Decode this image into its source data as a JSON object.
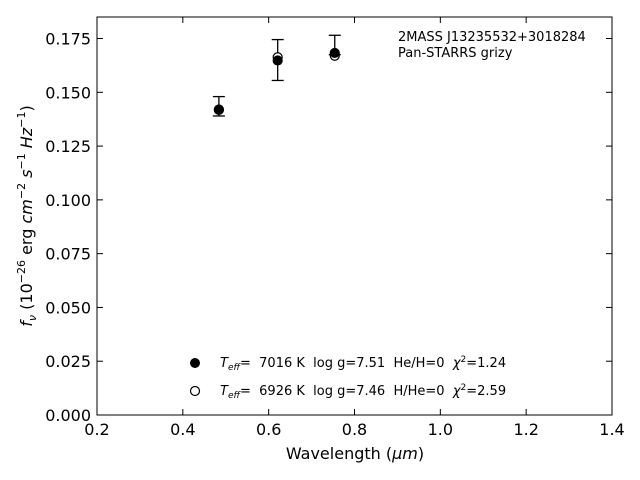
{
  "chart_data": {
    "type": "scatter",
    "title_lines": [
      "2MASS J13235532+3018284",
      "Pan-STARRS grizy"
    ],
    "xlabel_main": "Wavelength (",
    "xlabel_unit": "μm",
    "xlabel_end": ")",
    "ylabel_prefix": "f",
    "ylabel_sub": "ν",
    "ylabel_body": " (10",
    "ylabel_exp": "−26",
    "ylabel_units": " erg ",
    "ylabel_unit_cm": "cm",
    "ylabel_exp2": "−2",
    "ylabel_unit_s": " s",
    "ylabel_exp3": "−1",
    "ylabel_unit_hz": " Hz",
    "ylabel_exp4": "−1",
    "ylabel_close": ")",
    "xlim": [
      0.2,
      1.4
    ],
    "ylim": [
      0.0,
      0.185
    ],
    "xticks": [
      "0.2",
      "0.4",
      "0.6",
      "0.8",
      "1.0",
      "1.2",
      "1.4"
    ],
    "xtick_values": [
      0.2,
      0.4,
      0.6,
      0.8,
      1.0,
      1.2,
      1.4
    ],
    "yticks": [
      "0.000",
      "0.025",
      "0.050",
      "0.075",
      "0.100",
      "0.125",
      "0.150",
      "0.175"
    ],
    "ytick_values": [
      0.0,
      0.025,
      0.05,
      0.075,
      0.1,
      0.125,
      0.15,
      0.175
    ],
    "observed": {
      "x": [
        0.484,
        0.621,
        0.754
      ],
      "y": [
        0.1435,
        0.165,
        0.172
      ],
      "yerr": [
        0.0045,
        0.0095,
        0.0045
      ]
    },
    "series": [
      {
        "name": "Teff= 7016 K log g=7.51 He/H=0 χ2=1.24",
        "marker": "filled",
        "x": [
          0.484,
          0.621,
          0.754
        ],
        "y": [
          0.1418,
          0.1648,
          0.1683
        ]
      },
      {
        "name": "Teff= 6926 K log g=7.46 H/He=0 χ2=2.59",
        "marker": "open",
        "x": [
          0.484,
          0.621,
          0.754
        ],
        "y": [
          0.142,
          0.1663,
          0.167
        ]
      }
    ],
    "legend": [
      {
        "marker": "filled",
        "T": "T",
        "eff": "eff",
        "body": "=  7016 K  log g=7.51  He/H=0  ",
        "chi": "χ",
        "chi_exp": "2",
        "tail": "=1.24"
      },
      {
        "marker": "open",
        "T": "T",
        "eff": "eff",
        "body": "=  6926 K  log g=7.46  H/He=0  ",
        "chi": "χ",
        "chi_exp": "2",
        "tail": "=2.59"
      }
    ],
    "legend_position": "lower-center",
    "grid": false
  }
}
